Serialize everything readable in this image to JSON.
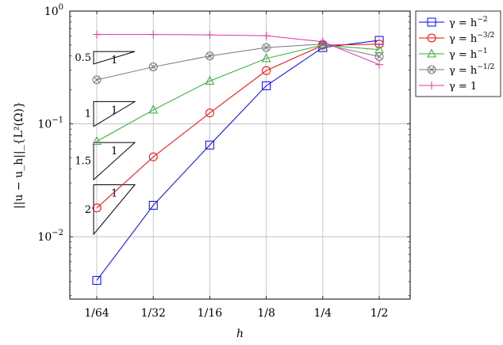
{
  "chart_data": {
    "type": "line",
    "x": [
      "1/64",
      "1/32",
      "1/16",
      "1/8",
      "1/4",
      "1/2"
    ],
    "xlabel": "h",
    "ylabel": "||u − u_h||_{L²(Ω)}",
    "yscale": "log",
    "ylim": [
      0.0028,
      1.0
    ],
    "yticks": [
      {
        "value": 1.0,
        "base": "10",
        "exp": "0"
      },
      {
        "value": 0.1,
        "base": "10",
        "exp": "−1"
      },
      {
        "value": 0.01,
        "base": "10",
        "exp": "−2"
      }
    ],
    "grid": true,
    "legend_position": "outside-right",
    "series": [
      {
        "name": "γ = h^{-2}",
        "legend": {
          "lhs": "γ = h",
          "exp": "−2"
        },
        "color": "#0000ff",
        "marker": "square",
        "values": [
          0.0041,
          0.019,
          0.065,
          0.218,
          0.475,
          0.55
        ]
      },
      {
        "name": "γ = h^{-3/2}",
        "legend": {
          "lhs": "γ = h",
          "exp": "−3/2"
        },
        "color": "#ff0000",
        "marker": "circle",
        "values": [
          0.018,
          0.051,
          0.125,
          0.297,
          0.498,
          0.51
        ]
      },
      {
        "name": "γ = h^{-1}",
        "legend": {
          "lhs": "γ = h",
          "exp": "−1"
        },
        "color": "#33aa33",
        "marker": "triangle",
        "values": [
          0.07,
          0.133,
          0.24,
          0.38,
          0.5,
          0.455
        ]
      },
      {
        "name": "γ = h^{-1/2}",
        "legend": {
          "lhs": "γ = h",
          "exp": "−1/2"
        },
        "color": "#777777",
        "marker": "otimes",
        "values": [
          0.246,
          0.32,
          0.4,
          0.475,
          0.51,
          0.395
        ]
      },
      {
        "name": "γ = 1",
        "legend": {
          "lhs": "γ = 1",
          "exp": ""
        },
        "color": "#e0309e",
        "marker": "plus",
        "values": [
          0.62,
          0.62,
          0.615,
          0.605,
          0.535,
          0.335
        ]
      }
    ],
    "slope_triangles": [
      {
        "order": "0.5",
        "slope": 0.5,
        "run_label": "1",
        "x_start": "1/64",
        "y_base": 0.34
      },
      {
        "order": "1",
        "slope": 1.0,
        "run_label": "1",
        "x_start": "1/64",
        "y_base": 0.095
      },
      {
        "order": "1.5",
        "slope": 1.5,
        "run_label": "1",
        "x_start": "1/64",
        "y_base": 0.032
      },
      {
        "order": "2",
        "slope": 2.0,
        "run_label": "1",
        "x_start": "1/64",
        "y_base": 0.0105
      }
    ]
  }
}
